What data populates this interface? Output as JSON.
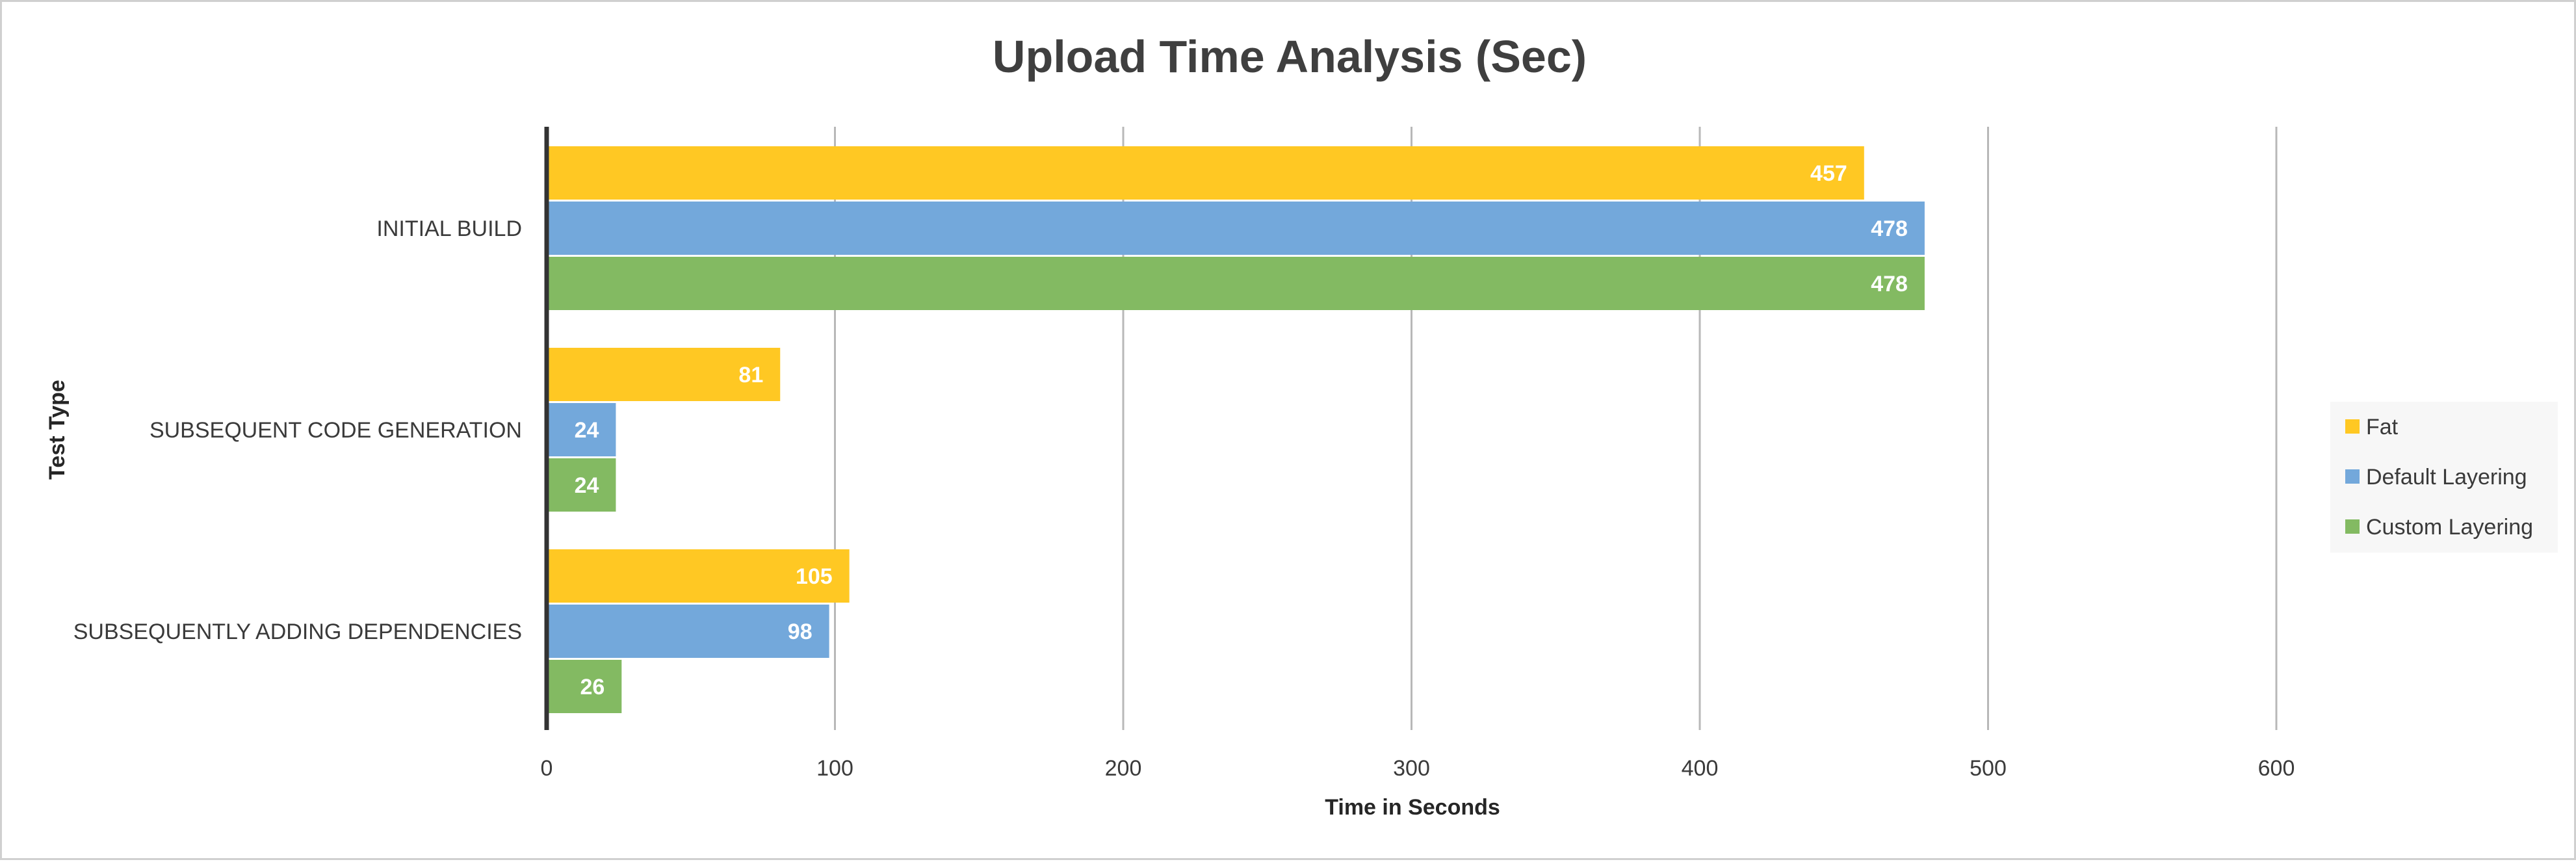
{
  "chart_data": {
    "type": "bar",
    "orientation": "horizontal",
    "title": "Upload Time Analysis (Sec)",
    "xlabel": "Time in Seconds",
    "ylabel": "Test Type",
    "categories": [
      "INITIAL BUILD",
      "SUBSEQUENT CODE GENERATION",
      "SUBSEQUENTLY ADDING DEPENDENCIES"
    ],
    "series": [
      {
        "name": "Fat",
        "color": "#FFC823",
        "values": [
          457,
          81,
          105
        ]
      },
      {
        "name": "Default Layering",
        "color": "#73A8DB",
        "values": [
          478,
          24,
          98
        ]
      },
      {
        "name": "Custom Layering",
        "color": "#83BA62",
        "values": [
          478,
          24,
          26
        ]
      }
    ],
    "xlim": [
      0,
      700
    ],
    "xticks": [
      0,
      100,
      200,
      300,
      400,
      500,
      600
    ],
    "grid": "vertical",
    "legend_position": "right",
    "data_labels": true
  }
}
